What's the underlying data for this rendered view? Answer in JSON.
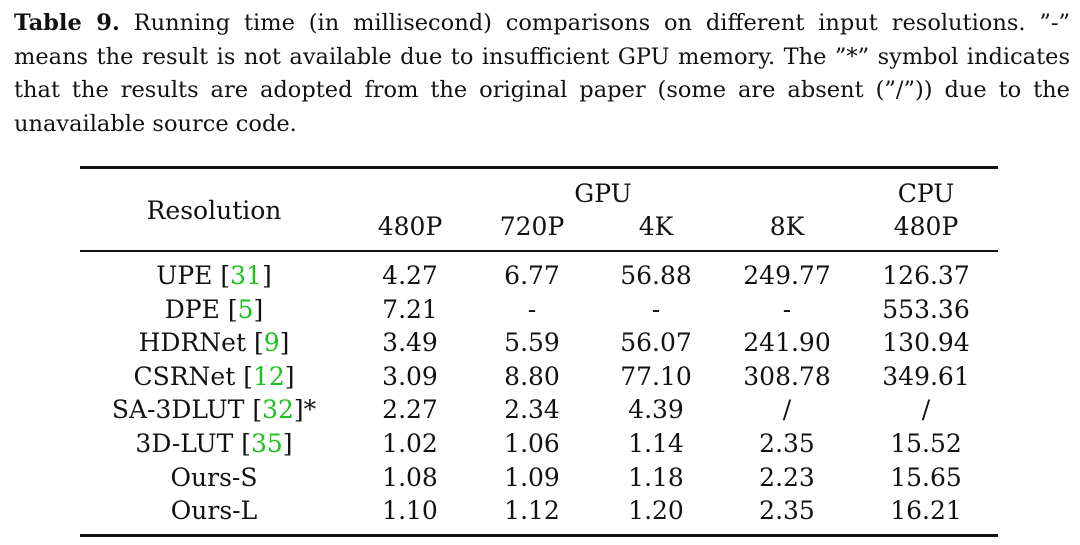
{
  "caption": {
    "label": "Table 9.",
    "text": " Running time (in millisecond) comparisons on different input resolutions. ”-” means the result is not available due to insufficient GPU memory. The ”*” symbol indicates that the results are adopted from the original paper (some are absent (”/”)) due to the unavailable source code."
  },
  "table": {
    "header": {
      "row_label": "Resolution",
      "gpu_group": "GPU",
      "cpu_group": "CPU",
      "gpu_columns": [
        "480P",
        "720P",
        "4K",
        "8K"
      ],
      "cpu_columns": [
        "480P"
      ]
    },
    "rows": [
      {
        "method": "UPE ",
        "ref_open": "[",
        "ref": "31",
        "ref_close": "]",
        "suffix": "",
        "values": [
          "4.27",
          "6.77",
          "56.88",
          "249.77",
          "126.37"
        ]
      },
      {
        "method": "DPE ",
        "ref_open": "[",
        "ref": "5",
        "ref_close": "]",
        "suffix": "",
        "values": [
          "7.21",
          "-",
          "-",
          "-",
          "553.36"
        ]
      },
      {
        "method": "HDRNet ",
        "ref_open": "[",
        "ref": "9",
        "ref_close": "]",
        "suffix": "",
        "values": [
          "3.49",
          "5.59",
          "56.07",
          "241.90",
          "130.94"
        ]
      },
      {
        "method": "CSRNet ",
        "ref_open": "[",
        "ref": "12",
        "ref_close": "]",
        "suffix": "",
        "values": [
          "3.09",
          "8.80",
          "77.10",
          "308.78",
          "349.61"
        ]
      },
      {
        "method": "SA-3DLUT ",
        "ref_open": "[",
        "ref": "32",
        "ref_close": "]",
        "suffix": "*",
        "values": [
          "2.27",
          "2.34",
          "4.39",
          "/",
          "/"
        ]
      },
      {
        "method": "3D-LUT ",
        "ref_open": "[",
        "ref": "35",
        "ref_close": "]",
        "suffix": "",
        "values": [
          "1.02",
          "1.06",
          "1.14",
          "2.35",
          "15.52"
        ]
      },
      {
        "method": "Ours-S",
        "ref_open": "",
        "ref": "",
        "ref_close": "",
        "suffix": "",
        "values": [
          "1.08",
          "1.09",
          "1.18",
          "2.23",
          "15.65"
        ]
      },
      {
        "method": "Ours-L",
        "ref_open": "",
        "ref": "",
        "ref_close": "",
        "suffix": "",
        "values": [
          "1.10",
          "1.12",
          "1.20",
          "2.35",
          "16.21"
        ]
      }
    ]
  }
}
